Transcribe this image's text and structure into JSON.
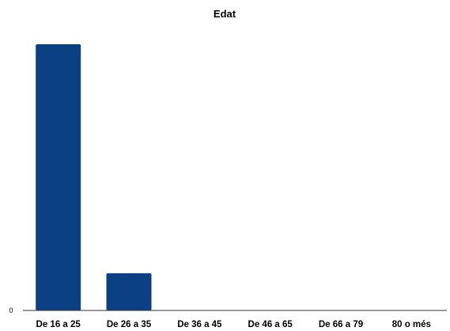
{
  "chart_data": {
    "type": "bar",
    "title": "Edat",
    "categories": [
      "De 16 a 25",
      "De 26 a 35",
      "De 36 a 45",
      "De 46 a 65",
      "De 66 a 79",
      "80 o més"
    ],
    "values": [
      30,
      4.2,
      0,
      0,
      0,
      0
    ],
    "ylim": [
      0,
      30
    ],
    "y_tick_labels": [
      "0"
    ],
    "grid": false,
    "legend": "none",
    "bar_color": "#0b4184",
    "axis_color": "#333333"
  }
}
